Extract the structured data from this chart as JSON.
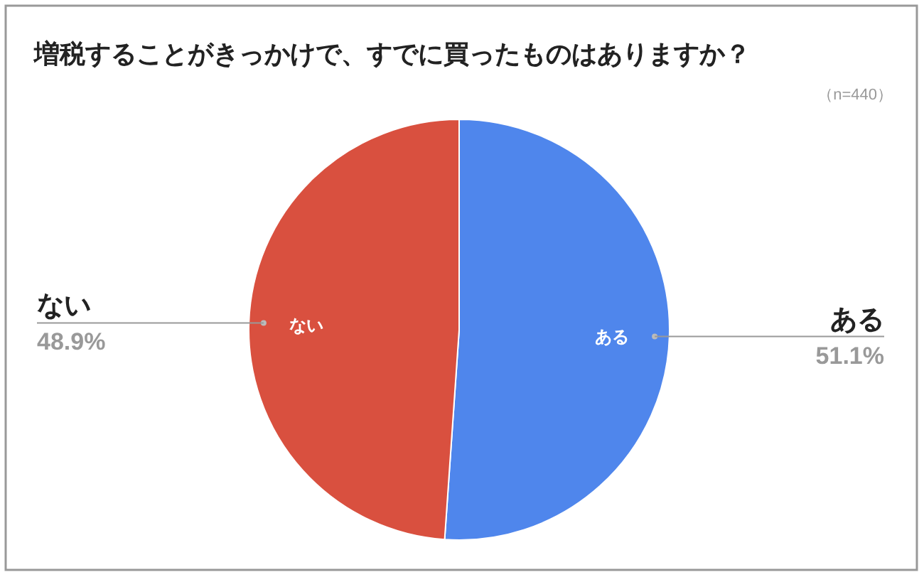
{
  "chart_data": {
    "type": "pie",
    "title": "増税することがきっかけで、すでに買ったものはありますか？",
    "annotations": [
      "（n=440）"
    ],
    "categories": [
      "ある",
      "ない"
    ],
    "values": [
      51.1,
      48.9
    ],
    "colors": [
      "#4f86ec",
      "#d9503f"
    ],
    "value_labels": [
      "51.1%",
      "48.9%"
    ]
  }
}
